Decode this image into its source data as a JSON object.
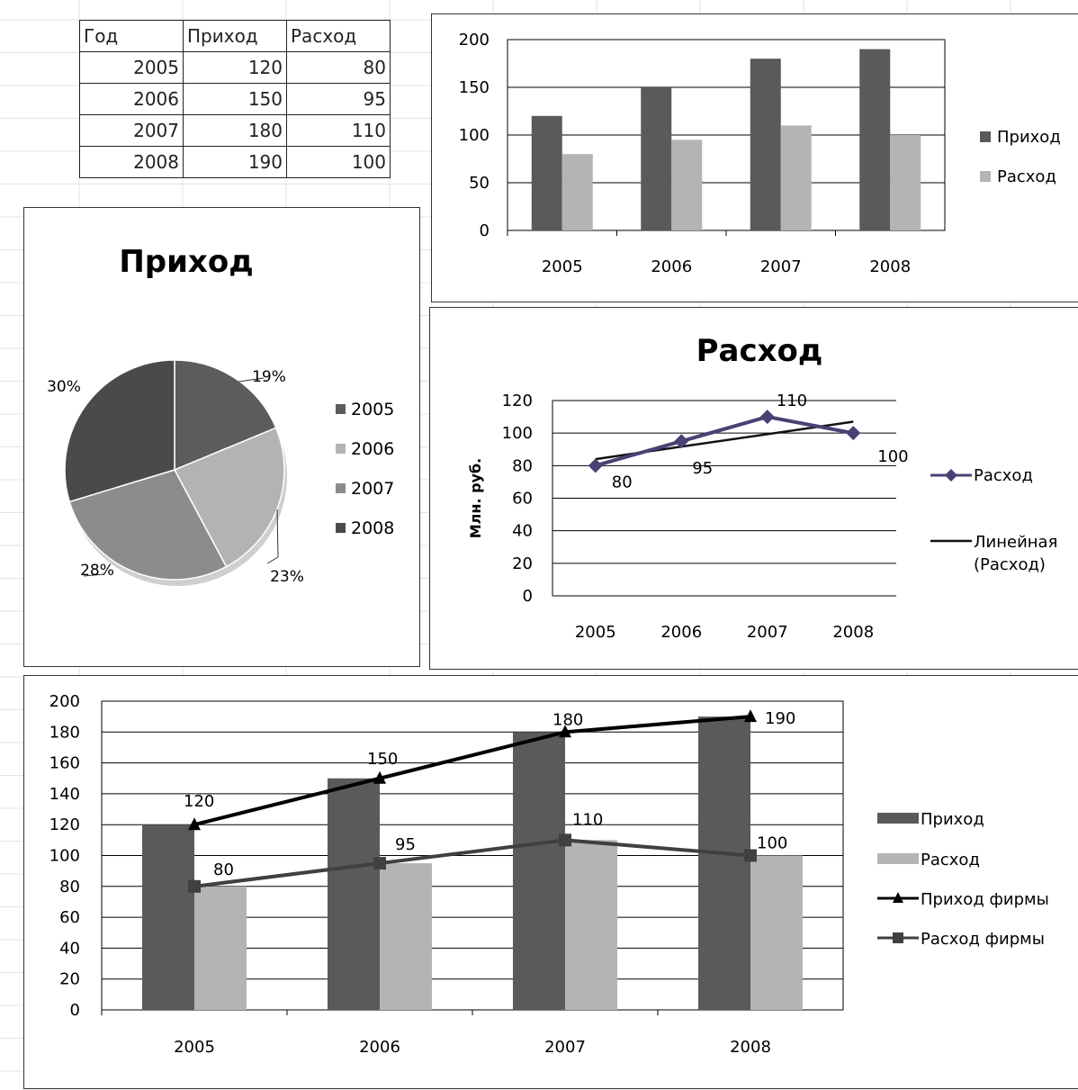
{
  "table": {
    "headers": [
      "Год",
      "Приход",
      "Расход"
    ],
    "rows": [
      [
        "2005",
        "120",
        "80"
      ],
      [
        "2006",
        "150",
        "95"
      ],
      [
        "2007",
        "180",
        "110"
      ],
      [
        "2008",
        "190",
        "100"
      ]
    ]
  },
  "colors": {
    "income": "#5a5a5a",
    "expense": "#b4b4b4",
    "pie": [
      "#5c5c5c",
      "#b3b3b3",
      "#8c8c8c",
      "#4a4a4a"
    ],
    "expense_line": "#4b4073",
    "trend": "#111111",
    "combo_expense_line": "#404040"
  },
  "chart_data": [
    {
      "id": "bar",
      "type": "bar",
      "title": "",
      "categories": [
        "2005",
        "2006",
        "2007",
        "2008"
      ],
      "series": [
        {
          "name": "Приход",
          "values": [
            120,
            150,
            180,
            190
          ]
        },
        {
          "name": "Расход",
          "values": [
            80,
            95,
            110,
            100
          ]
        }
      ],
      "ylim": [
        0,
        200
      ],
      "yticks": [
        0,
        50,
        100,
        150,
        200
      ],
      "grid": true,
      "legend": "right"
    },
    {
      "id": "pie",
      "type": "pie",
      "title": "Приход",
      "labels": [
        "2005",
        "2006",
        "2007",
        "2008"
      ],
      "values": [
        120,
        150,
        180,
        190
      ],
      "percent_labels": [
        "19%",
        "23%",
        "28%",
        "30%"
      ],
      "legend": "right"
    },
    {
      "id": "line",
      "type": "line",
      "title": "Расход",
      "ylabel": "Млн. руб.",
      "categories": [
        "2005",
        "2006",
        "2007",
        "2008"
      ],
      "series": [
        {
          "name": "Расход",
          "values": [
            80,
            95,
            110,
            100
          ],
          "data_labels": [
            "80",
            "95",
            "110",
            "100"
          ]
        }
      ],
      "trendline": {
        "name": "Линейная (Расход)",
        "start": 84,
        "end": 107
      },
      "ylim": [
        0,
        120
      ],
      "yticks": [
        0,
        20,
        40,
        60,
        80,
        100,
        120
      ],
      "grid": true,
      "legend": "right"
    },
    {
      "id": "combo",
      "type": "bar",
      "title": "",
      "categories": [
        "2005",
        "2006",
        "2007",
        "2008"
      ],
      "series": [
        {
          "name": "Приход",
          "kind": "bar",
          "values": [
            120,
            150,
            180,
            190
          ]
        },
        {
          "name": "Расход",
          "kind": "bar",
          "values": [
            80,
            95,
            110,
            100
          ]
        },
        {
          "name": "Приход фирмы",
          "kind": "line",
          "marker": "triangle",
          "values": [
            120,
            150,
            180,
            190
          ],
          "data_labels": [
            "120",
            "150",
            "180",
            "190"
          ]
        },
        {
          "name": "Расход фирмы",
          "kind": "line",
          "marker": "square",
          "values": [
            80,
            95,
            110,
            100
          ],
          "data_labels": [
            "80",
            "95",
            "110",
            "100"
          ]
        }
      ],
      "ylim": [
        0,
        200
      ],
      "yticks": [
        0,
        20,
        40,
        60,
        80,
        100,
        120,
        140,
        160,
        180,
        200
      ],
      "grid": true,
      "legend": "right"
    }
  ]
}
